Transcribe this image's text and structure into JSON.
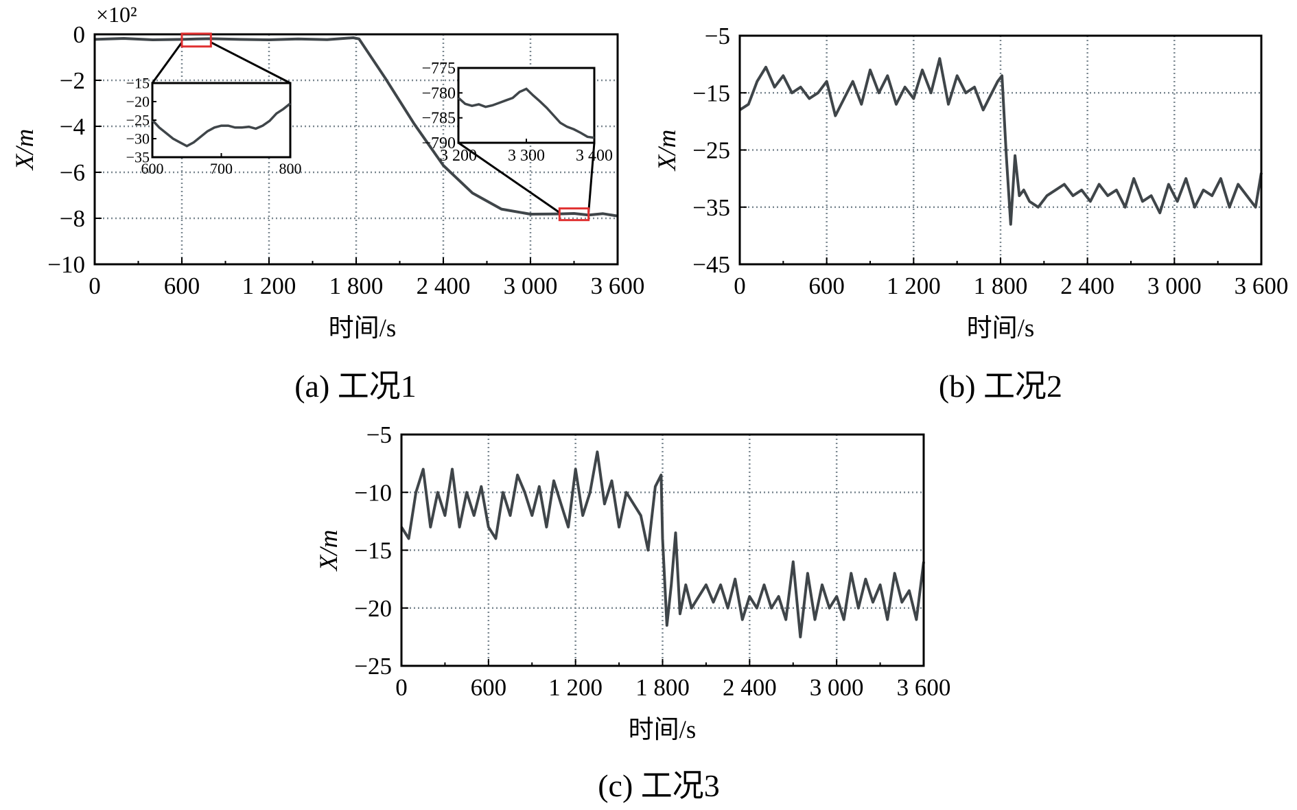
{
  "figure": {
    "captions": [
      "(a) 工况1",
      "(b) 工况2",
      "(c) 工况3"
    ],
    "colors": {
      "line": "#3f4549",
      "grid": "#7a8790",
      "highlight": "#e03030",
      "frame": "#000000"
    }
  },
  "chart_data": [
    {
      "id": "a",
      "type": "line",
      "title": "(a) 工况1",
      "xlabel": "时间/s",
      "ylabel": "X/m",
      "y_multiplier": "×10²",
      "xlim": [
        0,
        3600
      ],
      "ylim": [
        -10,
        0
      ],
      "xticks": [
        0,
        600,
        1200,
        1800,
        2400,
        3000,
        3600
      ],
      "xtick_labels": [
        "0",
        "600",
        "1 200",
        "1 800",
        "2 400",
        "3 000",
        "3 600"
      ],
      "yticks": [
        0,
        -2,
        -4,
        -6,
        -8,
        -10
      ],
      "ytick_labels": [
        "0",
        "−2",
        "−4",
        "−6",
        "−8",
        "−10"
      ],
      "grid": true,
      "series": [
        {
          "name": "X",
          "x": [
            0,
            200,
            400,
            600,
            700,
            800,
            1000,
            1200,
            1400,
            1600,
            1780,
            1820,
            2000,
            2200,
            2400,
            2600,
            2800,
            3000,
            3200,
            3300,
            3400,
            3500,
            3600
          ],
          "y": [
            -0.22,
            -0.18,
            -0.24,
            -0.22,
            -0.2,
            -0.19,
            -0.22,
            -0.24,
            -0.2,
            -0.23,
            -0.15,
            -0.2,
            -1.9,
            -3.9,
            -5.7,
            -6.9,
            -7.6,
            -7.82,
            -7.81,
            -7.79,
            -7.86,
            -7.8,
            -7.9
          ]
        }
      ],
      "insets": [
        {
          "id": "inset-1",
          "xlim": [
            600,
            800
          ],
          "ylim": [
            -35,
            -15
          ],
          "xticks": [
            600,
            700,
            800
          ],
          "xtick_labels": [
            "600",
            "700",
            "800"
          ],
          "yticks": [
            -15,
            -20,
            -25,
            -30,
            -35
          ],
          "ytick_labels": [
            "−15",
            "−20",
            "−25",
            "−30",
            "−35"
          ],
          "x": [
            600,
            610,
            620,
            630,
            640,
            650,
            660,
            670,
            680,
            690,
            700,
            710,
            720,
            730,
            740,
            750,
            760,
            770,
            780,
            790,
            800
          ],
          "y": [
            -25,
            -27,
            -28.5,
            -30,
            -31,
            -32,
            -31,
            -29.5,
            -28,
            -27,
            -26.5,
            -26.5,
            -27,
            -27,
            -26.8,
            -27.3,
            -26.5,
            -25.2,
            -23.2,
            -22,
            -20.5
          ]
        },
        {
          "id": "inset-2",
          "xlim": [
            3200,
            3400
          ],
          "ylim": [
            -790,
            -775
          ],
          "xticks": [
            3200,
            3300,
            3400
          ],
          "xtick_labels": [
            "3 200",
            "3 300",
            "3 400"
          ],
          "yticks": [
            -775,
            -780,
            -785,
            -790
          ],
          "ytick_labels": [
            "−775",
            "−780",
            "−785",
            "−790"
          ],
          "x": [
            3200,
            3210,
            3220,
            3230,
            3240,
            3250,
            3260,
            3270,
            3280,
            3290,
            3300,
            3310,
            3320,
            3330,
            3340,
            3350,
            3360,
            3370,
            3380,
            3390,
            3400
          ],
          "y": [
            -781,
            -782.2,
            -782.6,
            -782.3,
            -782.8,
            -782.5,
            -782,
            -781.5,
            -781,
            -779.8,
            -779.2,
            -780.5,
            -781.7,
            -783,
            -784.5,
            -786,
            -786.8,
            -787.3,
            -788,
            -788.8,
            -789
          ]
        }
      ]
    },
    {
      "id": "b",
      "type": "line",
      "title": "(b) 工况2",
      "xlabel": "时间/s",
      "ylabel": "X/m",
      "xlim": [
        0,
        3600
      ],
      "ylim": [
        -45,
        -5
      ],
      "xticks": [
        0,
        600,
        1200,
        1800,
        2400,
        3000,
        3600
      ],
      "xtick_labels": [
        "0",
        "600",
        "1 200",
        "1 800",
        "2 400",
        "3 000",
        "3 600"
      ],
      "yticks": [
        -5,
        -15,
        -25,
        -35,
        -45
      ],
      "ytick_labels": [
        "−5",
        "−15",
        "−25",
        "−35",
        "−45"
      ],
      "grid": true,
      "series": [
        {
          "name": "X",
          "x": [
            0,
            60,
            120,
            180,
            240,
            300,
            360,
            420,
            480,
            540,
            600,
            660,
            720,
            780,
            840,
            900,
            960,
            1020,
            1080,
            1140,
            1200,
            1260,
            1320,
            1380,
            1440,
            1500,
            1560,
            1620,
            1680,
            1740,
            1780,
            1810,
            1840,
            1870,
            1900,
            1930,
            1960,
            2000,
            2060,
            2120,
            2180,
            2240,
            2300,
            2360,
            2420,
            2480,
            2540,
            2600,
            2660,
            2720,
            2780,
            2840,
            2900,
            2960,
            3020,
            3080,
            3140,
            3200,
            3260,
            3320,
            3380,
            3440,
            3500,
            3560,
            3600
          ],
          "y": [
            -18,
            -17,
            -13,
            -10.5,
            -14,
            -12,
            -15,
            -14,
            -16,
            -15,
            -13,
            -19,
            -16,
            -13,
            -17,
            -11,
            -15,
            -12,
            -17,
            -14,
            -16,
            -11,
            -15,
            -9,
            -17,
            -12,
            -15,
            -14,
            -18,
            -15,
            -13,
            -12,
            -26,
            -38,
            -26,
            -33,
            -32,
            -34,
            -35,
            -33,
            -32,
            -31,
            -33,
            -32,
            -34,
            -31,
            -33,
            -32,
            -35,
            -30,
            -34,
            -33,
            -36,
            -31,
            -34,
            -30,
            -35,
            -32,
            -33,
            -30,
            -35,
            -31,
            -33,
            -35,
            -29
          ]
        }
      ]
    },
    {
      "id": "c",
      "type": "line",
      "title": "(c) 工况3",
      "xlabel": "时间/s",
      "ylabel": "X/m",
      "xlim": [
        0,
        3600
      ],
      "ylim": [
        -25,
        -5
      ],
      "xticks": [
        0,
        600,
        1200,
        1800,
        2400,
        3000,
        3600
      ],
      "xtick_labels": [
        "0",
        "600",
        "1 200",
        "1 800",
        "2 400",
        "3 000",
        "3 600"
      ],
      "yticks": [
        -5,
        -10,
        -15,
        -20,
        -25
      ],
      "ytick_labels": [
        "−5",
        "−10",
        "−15",
        "−20",
        "−25"
      ],
      "grid": true,
      "series": [
        {
          "name": "X",
          "x": [
            0,
            50,
            100,
            150,
            200,
            250,
            300,
            350,
            400,
            450,
            500,
            550,
            600,
            650,
            700,
            750,
            800,
            850,
            900,
            950,
            1000,
            1050,
            1100,
            1150,
            1200,
            1250,
            1300,
            1350,
            1400,
            1450,
            1500,
            1550,
            1600,
            1650,
            1700,
            1750,
            1790,
            1800,
            1830,
            1860,
            1890,
            1920,
            1960,
            2000,
            2050,
            2100,
            2150,
            2200,
            2250,
            2300,
            2350,
            2400,
            2450,
            2500,
            2550,
            2600,
            2650,
            2700,
            2750,
            2800,
            2850,
            2900,
            2950,
            3000,
            3050,
            3100,
            3150,
            3200,
            3250,
            3300,
            3350,
            3400,
            3450,
            3500,
            3550,
            3600
          ],
          "y": [
            -13,
            -14,
            -10,
            -8,
            -13,
            -10,
            -12,
            -8,
            -13,
            -10,
            -12,
            -9.5,
            -13,
            -14,
            -10,
            -12,
            -8.5,
            -10,
            -12,
            -9.5,
            -13,
            -9,
            -11,
            -13,
            -8,
            -12,
            -10,
            -6.5,
            -11,
            -9,
            -13,
            -10,
            -11,
            -12,
            -15,
            -9.5,
            -8.5,
            -14,
            -21.5,
            -18,
            -13.5,
            -20.5,
            -18,
            -20,
            -19,
            -18,
            -19.5,
            -18,
            -20,
            -17.5,
            -21,
            -19,
            -20,
            -18,
            -20,
            -19,
            -21,
            -16,
            -22.5,
            -17,
            -21,
            -18,
            -20,
            -19,
            -21,
            -17,
            -20,
            -17.5,
            -19.5,
            -18,
            -21,
            -17,
            -19.5,
            -18.5,
            -21,
            -16
          ]
        }
      ]
    }
  ]
}
